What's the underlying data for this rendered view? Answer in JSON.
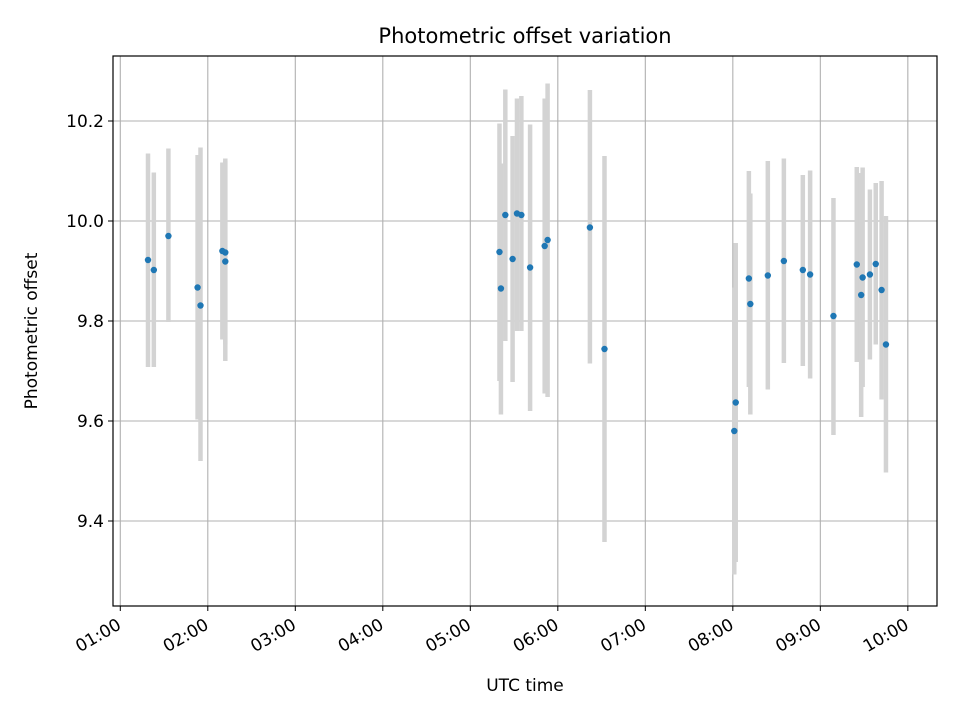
{
  "chart_data": {
    "type": "scatter",
    "title": "Photometric offset variation",
    "xlabel": "UTC time",
    "ylabel": "Photometric offset",
    "grid": true,
    "xlim": [
      "00:55",
      "10:20"
    ],
    "ylim": [
      9.23,
      10.33
    ],
    "x_tick_labels": [
      "01:00",
      "02:00",
      "03:00",
      "04:00",
      "05:00",
      "06:00",
      "07:00",
      "08:00",
      "09:00",
      "10:00"
    ],
    "y_tick_labels": [
      "9.4",
      "9.6",
      "9.8",
      "10.0",
      "10.2"
    ],
    "y_ticks": [
      9.4,
      9.6,
      9.8,
      10.0,
      10.2
    ],
    "colors": {
      "point": "#1f77b4",
      "errorbar": "#d3d3d3",
      "grid": "#b0b0b0"
    },
    "series": [
      {
        "points": [
          {
            "x": "01:19",
            "y": 9.922,
            "ylow": 9.708,
            "yhigh": 10.135
          },
          {
            "x": "01:23",
            "y": 9.902,
            "ylow": 9.708,
            "yhigh": 10.097
          },
          {
            "x": "01:33",
            "y": 9.97,
            "ylow": 9.798,
            "yhigh": 10.145
          },
          {
            "x": "01:53",
            "y": 9.867,
            "ylow": 9.603,
            "yhigh": 10.132
          },
          {
            "x": "01:55",
            "y": 9.831,
            "ylow": 9.52,
            "yhigh": 10.147
          },
          {
            "x": "02:10",
            "y": 9.94,
            "ylow": 9.763,
            "yhigh": 10.117
          },
          {
            "x": "02:12",
            "y": 9.937,
            "ylow": 9.753,
            "yhigh": 10.125
          },
          {
            "x": "02:12",
            "y": 9.919,
            "ylow": 9.72,
            "yhigh": 10.12
          },
          {
            "x": "05:20",
            "y": 9.938,
            "ylow": 9.68,
            "yhigh": 10.195
          },
          {
            "x": "05:21",
            "y": 9.865,
            "ylow": 9.613,
            "yhigh": 10.115
          },
          {
            "x": "05:24",
            "y": 10.012,
            "ylow": 9.76,
            "yhigh": 10.263
          },
          {
            "x": "05:29",
            "y": 9.924,
            "ylow": 9.678,
            "yhigh": 10.17
          },
          {
            "x": "05:32",
            "y": 10.015,
            "ylow": 9.78,
            "yhigh": 10.245
          },
          {
            "x": "05:35",
            "y": 10.012,
            "ylow": 9.78,
            "yhigh": 10.25
          },
          {
            "x": "05:41",
            "y": 9.907,
            "ylow": 9.62,
            "yhigh": 10.193
          },
          {
            "x": "05:51",
            "y": 9.95,
            "ylow": 9.655,
            "yhigh": 10.245
          },
          {
            "x": "05:53",
            "y": 9.962,
            "ylow": 9.648,
            "yhigh": 10.275
          },
          {
            "x": "06:22",
            "y": 9.987,
            "ylow": 9.715,
            "yhigh": 10.262
          },
          {
            "x": "06:32",
            "y": 9.744,
            "ylow": 9.358,
            "yhigh": 10.13
          },
          {
            "x": "08:01",
            "y": 9.58,
            "ylow": 9.293,
            "yhigh": 9.867
          },
          {
            "x": "08:02",
            "y": 9.637,
            "ylow": 9.318,
            "yhigh": 9.956
          },
          {
            "x": "08:11",
            "y": 9.885,
            "ylow": 9.668,
            "yhigh": 10.1
          },
          {
            "x": "08:12",
            "y": 9.834,
            "ylow": 9.613,
            "yhigh": 10.055
          },
          {
            "x": "08:24",
            "y": 9.891,
            "ylow": 9.663,
            "yhigh": 10.12
          },
          {
            "x": "08:35",
            "y": 9.92,
            "ylow": 9.716,
            "yhigh": 10.125
          },
          {
            "x": "08:48",
            "y": 9.902,
            "ylow": 9.71,
            "yhigh": 10.092
          },
          {
            "x": "08:53",
            "y": 9.893,
            "ylow": 9.685,
            "yhigh": 10.101
          },
          {
            "x": "09:09",
            "y": 9.81,
            "ylow": 9.572,
            "yhigh": 10.046
          },
          {
            "x": "09:25",
            "y": 9.913,
            "ylow": 9.718,
            "yhigh": 10.108
          },
          {
            "x": "09:28",
            "y": 9.852,
            "ylow": 9.608,
            "yhigh": 10.096
          },
          {
            "x": "09:29",
            "y": 9.887,
            "ylow": 9.668,
            "yhigh": 10.107
          },
          {
            "x": "09:34",
            "y": 9.893,
            "ylow": 9.723,
            "yhigh": 10.063
          },
          {
            "x": "09:38",
            "y": 9.914,
            "ylow": 9.753,
            "yhigh": 10.076
          },
          {
            "x": "09:42",
            "y": 9.862,
            "ylow": 9.643,
            "yhigh": 10.08
          },
          {
            "x": "09:45",
            "y": 9.753,
            "ylow": 9.497,
            "yhigh": 10.01
          }
        ]
      }
    ]
  }
}
